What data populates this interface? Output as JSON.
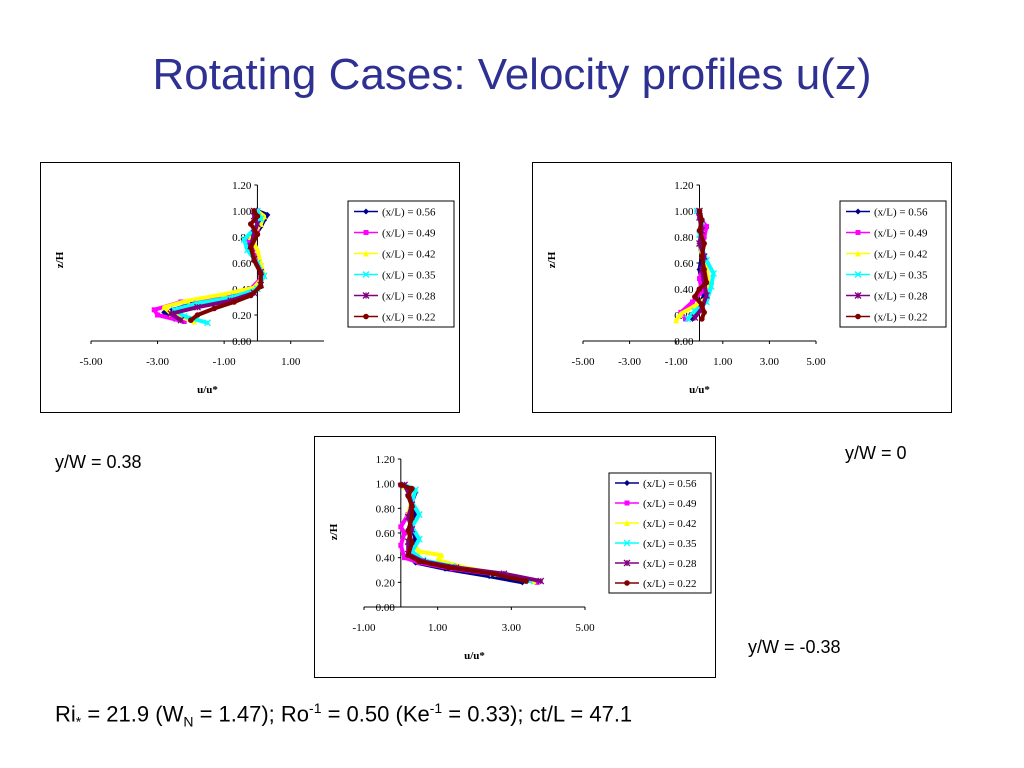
{
  "title": "Rotating Cases: Velocity profiles u(z)",
  "colors": {
    "title": "#2e3192",
    "series": [
      "#00008b",
      "#ff00ff",
      "#ffff00",
      "#00ffff",
      "#800080",
      "#800000"
    ]
  },
  "captions": {
    "left": "y/W = 0.38",
    "right": "y/W = 0",
    "bottom": "y/W = -0.38"
  },
  "params": {
    "ri_base": "Ri",
    "ri_sub": "*",
    "ri_text": " = 21.9 (W",
    "wn_sub": "N",
    "wn_text": " = 1.47); Ro",
    "ro_sup": "-1",
    "ro_text": " = 0.50 (Ke",
    "ke_sup": "-1",
    "ke_text": " = 0.33); ct/L = 47.1"
  },
  "chart_data": [
    {
      "type": "line",
      "xlabel": "u/u*",
      "ylabel": "z/H",
      "xlim": [
        -5,
        2
      ],
      "ylim": [
        0,
        1.2
      ],
      "xticks": [
        "-5.00",
        "-3.00",
        "-1.00",
        "1.00"
      ],
      "xtick_values": [
        -5,
        -3,
        -1,
        1
      ],
      "yticks": [
        "0.00",
        "0.20",
        "0.40",
        "0.60",
        "0.80",
        "1.00",
        "1.20"
      ],
      "ytick_values": [
        0,
        0.2,
        0.4,
        0.6,
        0.8,
        1.0,
        1.2
      ],
      "legend_position": "right",
      "series": [
        {
          "name": "(x/L) = 0.56",
          "points": [
            [
              -2.5,
              0.17
            ],
            [
              -2.8,
              0.22
            ],
            [
              -2.0,
              0.28
            ],
            [
              -1.0,
              0.33
            ],
            [
              -0.2,
              0.38
            ],
            [
              0.1,
              0.45
            ],
            [
              0.1,
              0.55
            ],
            [
              0.0,
              0.65
            ],
            [
              -0.3,
              0.72
            ],
            [
              -0.1,
              0.8
            ],
            [
              0.1,
              0.88
            ],
            [
              0.2,
              0.93
            ],
            [
              0.3,
              0.97
            ],
            [
              0.0,
              1.0
            ]
          ]
        },
        {
          "name": "(x/L) = 0.49",
          "points": [
            [
              -2.2,
              0.15
            ],
            [
              -3.0,
              0.2
            ],
            [
              -3.1,
              0.24
            ],
            [
              -2.3,
              0.3
            ],
            [
              -1.0,
              0.35
            ],
            [
              -0.2,
              0.4
            ],
            [
              0.1,
              0.48
            ],
            [
              0.1,
              0.58
            ],
            [
              -0.1,
              0.68
            ],
            [
              -0.3,
              0.78
            ],
            [
              0.0,
              0.86
            ],
            [
              0.1,
              0.94
            ],
            [
              0.0,
              1.0
            ]
          ]
        },
        {
          "name": "(x/L) = 0.42",
          "points": [
            [
              -1.9,
              0.15
            ],
            [
              -2.6,
              0.21
            ],
            [
              -2.8,
              0.26
            ],
            [
              -2.1,
              0.31
            ],
            [
              -1.0,
              0.36
            ],
            [
              -0.1,
              0.41
            ],
            [
              0.2,
              0.5
            ],
            [
              0.1,
              0.6
            ],
            [
              0.0,
              0.7
            ],
            [
              -0.2,
              0.8
            ],
            [
              0.1,
              0.9
            ],
            [
              0.2,
              0.96
            ],
            [
              0.0,
              1.0
            ]
          ]
        },
        {
          "name": "(x/L) = 0.35",
          "points": [
            [
              -1.5,
              0.14
            ],
            [
              -2.2,
              0.19
            ],
            [
              -2.5,
              0.24
            ],
            [
              -1.8,
              0.29
            ],
            [
              -0.7,
              0.34
            ],
            [
              0.0,
              0.4
            ],
            [
              0.2,
              0.5
            ],
            [
              0.0,
              0.6
            ],
            [
              -0.3,
              0.7
            ],
            [
              -0.4,
              0.78
            ],
            [
              -0.1,
              0.86
            ],
            [
              0.1,
              0.94
            ],
            [
              0.0,
              1.0
            ]
          ]
        },
        {
          "name": "(x/L) = 0.28",
          "points": [
            [
              -2.3,
              0.16
            ],
            [
              -2.6,
              0.21
            ],
            [
              -1.8,
              0.26
            ],
            [
              -0.8,
              0.31
            ],
            [
              -0.1,
              0.37
            ],
            [
              0.1,
              0.43
            ],
            [
              0.1,
              0.53
            ],
            [
              -0.1,
              0.63
            ],
            [
              -0.2,
              0.73
            ],
            [
              -0.1,
              0.83
            ],
            [
              0.0,
              0.9
            ],
            [
              -0.1,
              0.96
            ],
            [
              -0.1,
              1.0
            ]
          ]
        },
        {
          "name": "(x/L) = 0.22",
          "points": [
            [
              -2.0,
              0.16
            ],
            [
              -1.8,
              0.2
            ],
            [
              -1.3,
              0.25
            ],
            [
              -0.7,
              0.3
            ],
            [
              -0.2,
              0.35
            ],
            [
              0.1,
              0.42
            ],
            [
              0.1,
              0.52
            ],
            [
              -0.1,
              0.62
            ],
            [
              -0.2,
              0.72
            ],
            [
              0.0,
              0.82
            ],
            [
              -0.2,
              0.9
            ],
            [
              0.0,
              0.96
            ],
            [
              -0.1,
              1.0
            ]
          ]
        }
      ]
    },
    {
      "type": "line",
      "xlabel": "u/u*",
      "ylabel": "z/H",
      "xlim": [
        -5,
        5
      ],
      "ylim": [
        0,
        1.2
      ],
      "xticks": [
        "-5.00",
        "-3.00",
        "-1.00",
        "1.00",
        "3.00",
        "5.00"
      ],
      "xtick_values": [
        -5,
        -3,
        -1,
        1,
        3,
        5
      ],
      "yticks": [
        "0.00",
        "0.20",
        "0.40",
        "0.60",
        "0.80",
        "1.00",
        "1.20"
      ],
      "ytick_values": [
        0,
        0.2,
        0.4,
        0.6,
        0.8,
        1.0,
        1.2
      ],
      "legend_position": "right",
      "series": [
        {
          "name": "(x/L) = 0.56",
          "points": [
            [
              -0.3,
              0.17
            ],
            [
              -0.1,
              0.25
            ],
            [
              0.2,
              0.35
            ],
            [
              0.1,
              0.45
            ],
            [
              0.0,
              0.55
            ],
            [
              0.1,
              0.65
            ],
            [
              0.0,
              0.75
            ],
            [
              0.2,
              0.85
            ],
            [
              0.1,
              0.93
            ],
            [
              0.0,
              1.0
            ]
          ]
        },
        {
          "name": "(x/L) = 0.49",
          "points": [
            [
              -0.6,
              0.17
            ],
            [
              -0.8,
              0.22
            ],
            [
              -0.3,
              0.3
            ],
            [
              0.1,
              0.38
            ],
            [
              0.0,
              0.48
            ],
            [
              0.2,
              0.6
            ],
            [
              0.1,
              0.7
            ],
            [
              0.2,
              0.8
            ],
            [
              0.3,
              0.88
            ],
            [
              0.0,
              0.95
            ],
            [
              -0.1,
              1.0
            ]
          ]
        },
        {
          "name": "(x/L) = 0.42",
          "points": [
            [
              -1.0,
              0.16
            ],
            [
              -0.8,
              0.21
            ],
            [
              -0.2,
              0.27
            ],
            [
              0.3,
              0.33
            ],
            [
              0.4,
              0.43
            ],
            [
              0.3,
              0.55
            ],
            [
              0.1,
              0.66
            ],
            [
              0.0,
              0.76
            ],
            [
              0.1,
              0.86
            ],
            [
              0.0,
              0.95
            ],
            [
              0.0,
              1.0
            ]
          ]
        },
        {
          "name": "(x/L) = 0.35",
          "points": [
            [
              -0.5,
              0.17
            ],
            [
              -0.2,
              0.23
            ],
            [
              0.3,
              0.3
            ],
            [
              0.5,
              0.42
            ],
            [
              0.6,
              0.52
            ],
            [
              0.3,
              0.62
            ],
            [
              0.1,
              0.72
            ],
            [
              0.0,
              0.82
            ],
            [
              0.1,
              0.92
            ],
            [
              -0.1,
              1.0
            ]
          ]
        },
        {
          "name": "(x/L) = 0.28",
          "points": [
            [
              -0.2,
              0.18
            ],
            [
              0.1,
              0.25
            ],
            [
              0.3,
              0.35
            ],
            [
              0.2,
              0.45
            ],
            [
              0.1,
              0.55
            ],
            [
              0.2,
              0.65
            ],
            [
              0.0,
              0.75
            ],
            [
              0.1,
              0.85
            ],
            [
              0.0,
              0.95
            ],
            [
              0.0,
              1.0
            ]
          ]
        },
        {
          "name": "(x/L) = 0.22",
          "points": [
            [
              0.1,
              0.17
            ],
            [
              0.2,
              0.22
            ],
            [
              0.1,
              0.28
            ],
            [
              -0.2,
              0.34
            ],
            [
              0.0,
              0.4
            ],
            [
              0.3,
              0.45
            ],
            [
              0.2,
              0.55
            ],
            [
              0.1,
              0.65
            ],
            [
              0.2,
              0.75
            ],
            [
              0.0,
              0.85
            ],
            [
              0.1,
              0.93
            ],
            [
              0.0,
              1.0
            ]
          ]
        }
      ]
    },
    {
      "type": "line",
      "xlabel": "u/u*",
      "ylabel": "z/H",
      "xlim": [
        -1,
        5
      ],
      "ylim": [
        0,
        1.2
      ],
      "xticks": [
        "-1.00",
        "1.00",
        "3.00",
        "5.00"
      ],
      "xtick_values": [
        -1,
        1,
        3,
        5
      ],
      "yticks": [
        "0.00",
        "0.20",
        "0.40",
        "0.60",
        "0.80",
        "1.00",
        "1.20"
      ],
      "ytick_values": [
        0,
        0.2,
        0.4,
        0.6,
        0.8,
        1.0,
        1.2
      ],
      "legend_position": "right",
      "series": [
        {
          "name": "(x/L) = 0.56",
          "points": [
            [
              3.3,
              0.2
            ],
            [
              2.4,
              0.25
            ],
            [
              1.2,
              0.31
            ],
            [
              0.4,
              0.36
            ],
            [
              0.3,
              0.45
            ],
            [
              0.4,
              0.55
            ],
            [
              0.3,
              0.65
            ],
            [
              0.4,
              0.75
            ],
            [
              0.3,
              0.85
            ],
            [
              0.4,
              0.93
            ],
            [
              0.1,
              0.99
            ]
          ]
        },
        {
          "name": "(x/L) = 0.49",
          "points": [
            [
              3.7,
              0.2
            ],
            [
              2.7,
              0.26
            ],
            [
              1.4,
              0.31
            ],
            [
              0.5,
              0.36
            ],
            [
              0.1,
              0.4
            ],
            [
              0.0,
              0.5
            ],
            [
              0.1,
              0.6
            ],
            [
              0.0,
              0.65
            ],
            [
              0.2,
              0.75
            ],
            [
              0.3,
              0.85
            ],
            [
              0.2,
              0.95
            ],
            [
              0.0,
              0.99
            ]
          ]
        },
        {
          "name": "(x/L) = 0.42",
          "points": [
            [
              3.6,
              0.21
            ],
            [
              2.6,
              0.27
            ],
            [
              1.6,
              0.33
            ],
            [
              1.0,
              0.38
            ],
            [
              1.1,
              0.42
            ],
            [
              0.5,
              0.45
            ],
            [
              0.2,
              0.55
            ],
            [
              0.3,
              0.65
            ],
            [
              0.2,
              0.75
            ],
            [
              0.3,
              0.88
            ],
            [
              0.1,
              0.98
            ]
          ]
        },
        {
          "name": "(x/L) = 0.35",
          "points": [
            [
              3.5,
              0.21
            ],
            [
              2.5,
              0.27
            ],
            [
              1.4,
              0.33
            ],
            [
              0.6,
              0.38
            ],
            [
              0.3,
              0.45
            ],
            [
              0.5,
              0.55
            ],
            [
              0.3,
              0.65
            ],
            [
              0.5,
              0.75
            ],
            [
              0.3,
              0.85
            ],
            [
              0.4,
              0.95
            ],
            [
              0.1,
              0.99
            ]
          ]
        },
        {
          "name": "(x/L) = 0.28",
          "points": [
            [
              3.8,
              0.21
            ],
            [
              2.8,
              0.27
            ],
            [
              1.5,
              0.32
            ],
            [
              0.6,
              0.37
            ],
            [
              0.2,
              0.43
            ],
            [
              0.2,
              0.53
            ],
            [
              0.3,
              0.63
            ],
            [
              0.2,
              0.73
            ],
            [
              0.3,
              0.83
            ],
            [
              0.2,
              0.93
            ],
            [
              0.1,
              0.99
            ]
          ]
        },
        {
          "name": "(x/L) = 0.22",
          "points": [
            [
              3.4,
              0.21
            ],
            [
              2.5,
              0.27
            ],
            [
              1.3,
              0.32
            ],
            [
              0.5,
              0.37
            ],
            [
              0.2,
              0.42
            ],
            [
              0.3,
              0.52
            ],
            [
              0.2,
              0.62
            ],
            [
              0.3,
              0.72
            ],
            [
              0.3,
              0.82
            ],
            [
              0.2,
              0.9
            ],
            [
              0.3,
              0.96
            ],
            [
              0.0,
              0.99
            ]
          ]
        }
      ]
    }
  ]
}
